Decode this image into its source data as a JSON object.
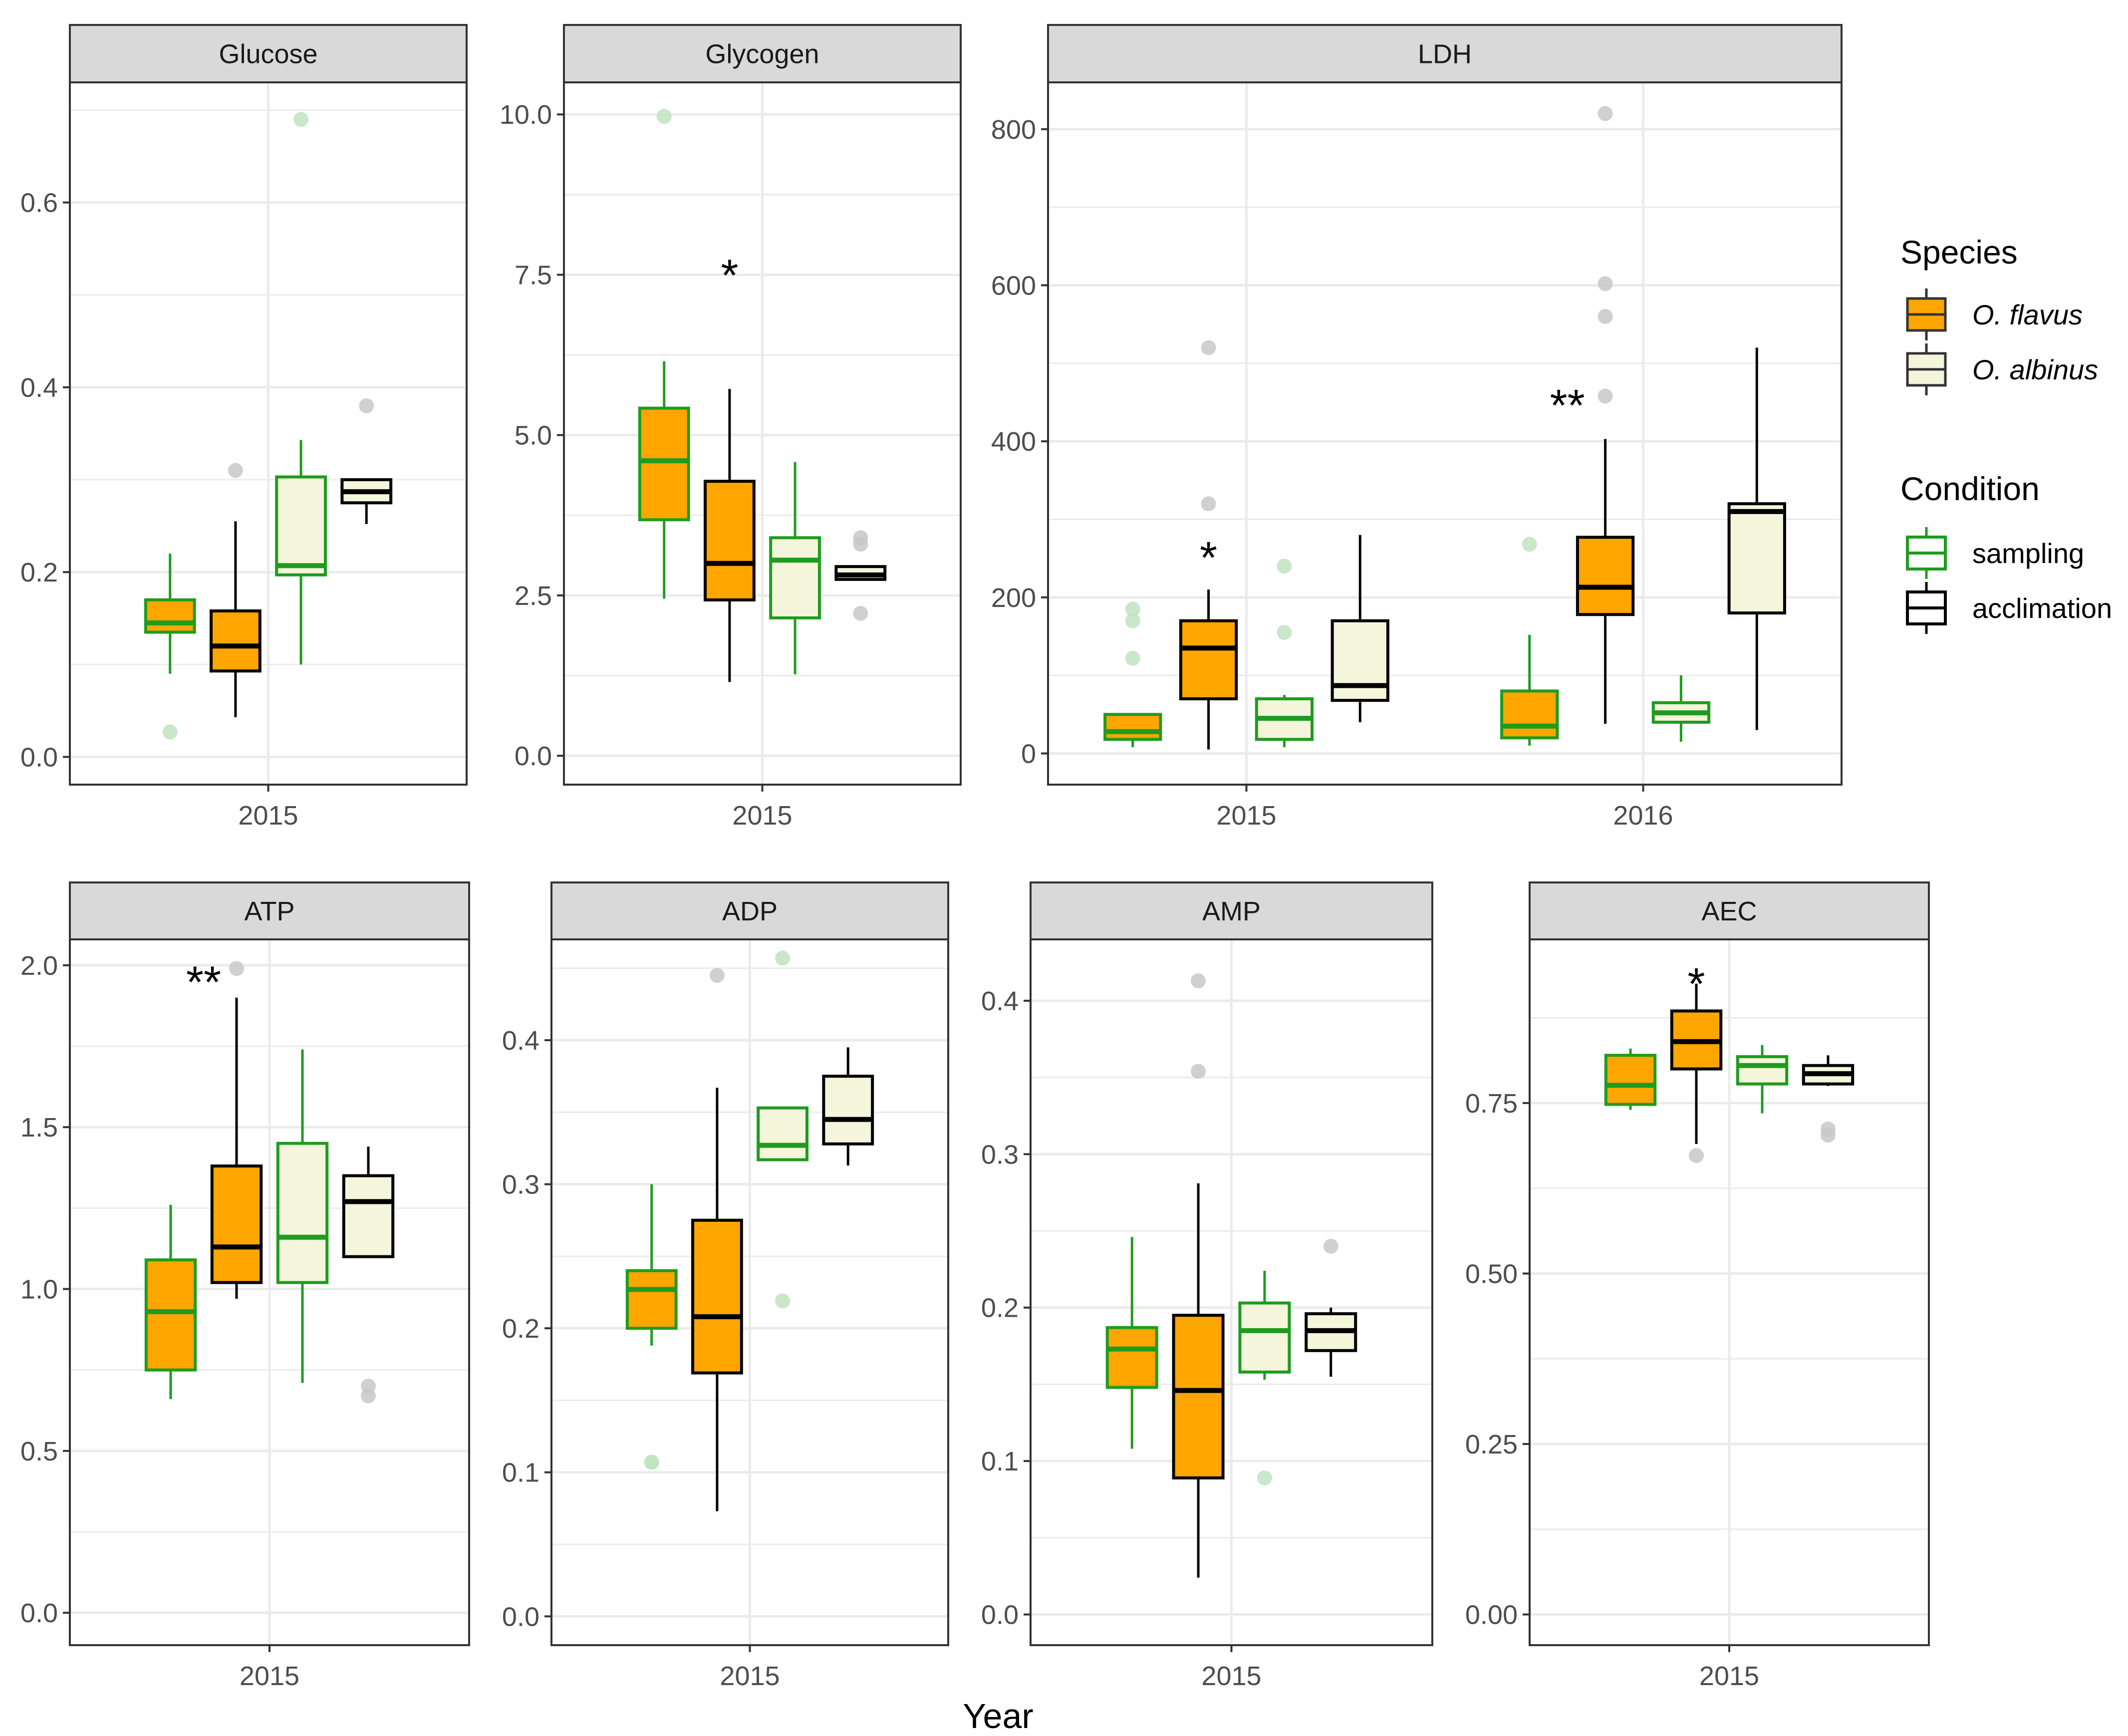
{
  "figure": {
    "xlabel": "Year",
    "legend_species_title": "Species",
    "legend_condition_title": "Condition",
    "legend_position": "right",
    "grid": true
  },
  "legend": {
    "species": [
      {
        "label": "O. flavus",
        "fill": "#FFA500",
        "italic": true
      },
      {
        "label": "O. albinus",
        "fill": "#F5F5DC",
        "italic": true
      }
    ],
    "condition": [
      {
        "label": "sampling",
        "stroke": "#1E9C1E"
      },
      {
        "label": "acclimation",
        "stroke": "#000000"
      }
    ]
  },
  "colors": {
    "o_flavus": "#FFA500",
    "o_albinus": "#F5F5DC",
    "sampling": "#1E9C1E",
    "acclimation": "#000000",
    "strip": "#D9D9D9",
    "grid": "#EBEBEB",
    "outlier_sampling": "#BFE3BF",
    "outlier_acclimation": "#C8C8C8"
  },
  "chart_data": [
    {
      "type": "box",
      "title": "Glucose",
      "ylim": [
        -0.03,
        0.73
      ],
      "yticks": [
        0.0,
        0.2,
        0.4,
        0.6
      ],
      "ytick_labels": [
        "0.0",
        "0.2",
        "0.4",
        "0.6"
      ],
      "minor_grid": [
        0.1,
        0.3,
        0.5,
        0.7
      ],
      "years": [
        "2015"
      ],
      "groups": [
        {
          "year": "2015",
          "species": "O. flavus",
          "condition": "sampling",
          "min": 0.09,
          "q1": 0.135,
          "median": 0.145,
          "q3": 0.17,
          "max": 0.22,
          "outliers": [
            0.027
          ]
        },
        {
          "year": "2015",
          "species": "O. flavus",
          "condition": "acclimation",
          "min": 0.043,
          "q1": 0.093,
          "median": 0.12,
          "q3": 0.158,
          "max": 0.255,
          "outliers": [
            0.31
          ]
        },
        {
          "year": "2015",
          "species": "O. albinus",
          "condition": "sampling",
          "min": 0.1,
          "q1": 0.197,
          "median": 0.207,
          "q3": 0.303,
          "max": 0.343,
          "outliers": [
            0.69
          ]
        },
        {
          "year": "2015",
          "species": "O. albinus",
          "condition": "acclimation",
          "min": 0.252,
          "q1": 0.275,
          "median": 0.287,
          "q3": 0.3,
          "max": 0.3,
          "outliers": [
            0.38
          ]
        }
      ],
      "annotations": []
    },
    {
      "type": "box",
      "title": "Glycogen",
      "ylim": [
        -0.45,
        10.5
      ],
      "yticks": [
        0.0,
        2.5,
        5.0,
        7.5,
        10.0
      ],
      "ytick_labels": [
        "0.0",
        "2.5",
        "5.0",
        "7.5",
        "10.0"
      ],
      "minor_grid": [
        1.25,
        3.75,
        6.25,
        8.75
      ],
      "years": [
        "2015"
      ],
      "groups": [
        {
          "year": "2015",
          "species": "O. flavus",
          "condition": "sampling",
          "min": 2.45,
          "q1": 3.68,
          "median": 4.6,
          "q3": 5.42,
          "max": 6.15,
          "outliers": [
            9.97
          ]
        },
        {
          "year": "2015",
          "species": "O. flavus",
          "condition": "acclimation",
          "min": 1.15,
          "q1": 2.43,
          "median": 3.0,
          "q3": 4.28,
          "max": 5.72,
          "outliers": []
        },
        {
          "year": "2015",
          "species": "O. albinus",
          "condition": "sampling",
          "min": 1.27,
          "q1": 2.15,
          "median": 3.05,
          "q3": 3.4,
          "max": 4.58,
          "outliers": []
        },
        {
          "year": "2015",
          "species": "O. albinus",
          "condition": "acclimation",
          "min": 2.75,
          "q1": 2.75,
          "median": 2.82,
          "q3": 2.95,
          "max": 2.95,
          "outliers": [
            3.4,
            3.3,
            2.22
          ]
        }
      ],
      "annotations": [
        {
          "text": "*",
          "year": "2015",
          "group": 1,
          "y": 7.6
        }
      ]
    },
    {
      "type": "box",
      "title": "LDH",
      "ylim": [
        -40,
        860
      ],
      "yticks": [
        0,
        200,
        400,
        600,
        800
      ],
      "ytick_labels": [
        "0",
        "200",
        "400",
        "600",
        "800"
      ],
      "minor_grid": [
        100,
        300,
        500,
        700
      ],
      "years": [
        "2015",
        "2016"
      ],
      "groups": [
        {
          "year": "2015",
          "species": "O. flavus",
          "condition": "sampling",
          "min": 8,
          "q1": 18,
          "median": 28,
          "q3": 50,
          "max": 50,
          "outliers": [
            185,
            170,
            122
          ]
        },
        {
          "year": "2015",
          "species": "O. flavus",
          "condition": "acclimation",
          "min": 5,
          "q1": 70,
          "median": 135,
          "q3": 170,
          "max": 210,
          "outliers": [
            520,
            320
          ]
        },
        {
          "year": "2015",
          "species": "O. albinus",
          "condition": "sampling",
          "min": 8,
          "q1": 18,
          "median": 45,
          "q3": 70,
          "max": 75,
          "outliers": [
            240,
            155
          ]
        },
        {
          "year": "2015",
          "species": "O. albinus",
          "condition": "acclimation",
          "min": 40,
          "q1": 68,
          "median": 87,
          "q3": 170,
          "max": 280,
          "outliers": []
        },
        {
          "year": "2016",
          "species": "O. flavus",
          "condition": "sampling",
          "min": 10,
          "q1": 20,
          "median": 35,
          "q3": 80,
          "max": 152,
          "outliers": [
            268
          ]
        },
        {
          "year": "2016",
          "species": "O. flavus",
          "condition": "acclimation",
          "min": 38,
          "q1": 178,
          "median": 213,
          "q3": 277,
          "max": 403,
          "outliers": [
            820,
            602,
            560,
            458
          ]
        },
        {
          "year": "2016",
          "species": "O. albinus",
          "condition": "sampling",
          "min": 15,
          "q1": 40,
          "median": 52,
          "q3": 65,
          "max": 100,
          "outliers": []
        },
        {
          "year": "2016",
          "species": "O. albinus",
          "condition": "acclimation",
          "min": 30,
          "q1": 180,
          "median": 310,
          "q3": 320,
          "max": 520,
          "outliers": []
        }
      ],
      "annotations": [
        {
          "text": "*",
          "year": "2015",
          "group": 1,
          "y": 260
        },
        {
          "text": "**",
          "year": "2016",
          "group": 0.5,
          "y": 455
        }
      ]
    },
    {
      "type": "box",
      "title": "ATP",
      "ylim": [
        -0.1,
        2.08
      ],
      "yticks": [
        0.0,
        0.5,
        1.0,
        1.5,
        2.0
      ],
      "ytick_labels": [
        "0.0",
        "0.5",
        "1.0",
        "1.5",
        "2.0"
      ],
      "minor_grid": [
        0.25,
        0.75,
        1.25,
        1.75
      ],
      "years": [
        "2015"
      ],
      "groups": [
        {
          "year": "2015",
          "species": "O. flavus",
          "condition": "sampling",
          "min": 0.66,
          "q1": 0.75,
          "median": 0.93,
          "q3": 1.09,
          "max": 1.26,
          "outliers": []
        },
        {
          "year": "2015",
          "species": "O. flavus",
          "condition": "acclimation",
          "min": 0.97,
          "q1": 1.02,
          "median": 1.13,
          "q3": 1.38,
          "max": 1.9,
          "outliers": [
            1.99
          ]
        },
        {
          "year": "2015",
          "species": "O. albinus",
          "condition": "sampling",
          "min": 0.71,
          "q1": 1.02,
          "median": 1.16,
          "q3": 1.45,
          "max": 1.74,
          "outliers": []
        },
        {
          "year": "2015",
          "species": "O. albinus",
          "condition": "acclimation",
          "min": 1.1,
          "q1": 1.1,
          "median": 1.27,
          "q3": 1.35,
          "max": 1.44,
          "outliers": [
            0.7,
            0.67
          ]
        }
      ],
      "annotations": [
        {
          "text": "**",
          "year": "2015",
          "group": 0.5,
          "y": 1.97
        }
      ]
    },
    {
      "type": "box",
      "title": "ADP",
      "ylim": [
        -0.02,
        0.47
      ],
      "yticks": [
        0.0,
        0.1,
        0.2,
        0.3,
        0.4
      ],
      "ytick_labels": [
        "0.0",
        "0.1",
        "0.2",
        "0.3",
        "0.4"
      ],
      "minor_grid": [
        0.05,
        0.15,
        0.25,
        0.35,
        0.45
      ],
      "years": [
        "2015"
      ],
      "groups": [
        {
          "year": "2015",
          "species": "O. flavus",
          "condition": "sampling",
          "min": 0.188,
          "q1": 0.2,
          "median": 0.227,
          "q3": 0.24,
          "max": 0.3,
          "outliers": [
            0.107,
            0.107
          ]
        },
        {
          "year": "2015",
          "species": "O. flavus",
          "condition": "acclimation",
          "min": 0.073,
          "q1": 0.169,
          "median": 0.208,
          "q3": 0.275,
          "max": 0.367,
          "outliers": [
            0.445
          ]
        },
        {
          "year": "2015",
          "species": "O. albinus",
          "condition": "sampling",
          "min": 0.317,
          "q1": 0.317,
          "median": 0.327,
          "q3": 0.353,
          "max": 0.353,
          "outliers": [
            0.457,
            0.219
          ]
        },
        {
          "year": "2015",
          "species": "O. albinus",
          "condition": "acclimation",
          "min": 0.313,
          "q1": 0.328,
          "median": 0.345,
          "q3": 0.375,
          "max": 0.395,
          "outliers": []
        }
      ],
      "annotations": []
    },
    {
      "type": "box",
      "title": "AMP",
      "ylim": [
        -0.02,
        0.44
      ],
      "yticks": [
        0.0,
        0.1,
        0.2,
        0.3,
        0.4
      ],
      "ytick_labels": [
        "0.0",
        "0.1",
        "0.2",
        "0.3",
        "0.4"
      ],
      "minor_grid": [
        0.05,
        0.15,
        0.25,
        0.35
      ],
      "years": [
        "2015"
      ],
      "groups": [
        {
          "year": "2015",
          "species": "O. flavus",
          "condition": "sampling",
          "min": 0.108,
          "q1": 0.148,
          "median": 0.173,
          "q3": 0.187,
          "max": 0.246,
          "outliers": []
        },
        {
          "year": "2015",
          "species": "O. flavus",
          "condition": "acclimation",
          "min": 0.024,
          "q1": 0.089,
          "median": 0.146,
          "q3": 0.195,
          "max": 0.281,
          "outliers": [
            0.413,
            0.354
          ]
        },
        {
          "year": "2015",
          "species": "O. albinus",
          "condition": "sampling",
          "min": 0.153,
          "q1": 0.158,
          "median": 0.185,
          "q3": 0.203,
          "max": 0.224,
          "outliers": [
            0.089
          ]
        },
        {
          "year": "2015",
          "species": "O. albinus",
          "condition": "acclimation",
          "min": 0.155,
          "q1": 0.172,
          "median": 0.185,
          "q3": 0.196,
          "max": 0.2,
          "outliers": [
            0.24
          ]
        }
      ],
      "annotations": []
    },
    {
      "type": "box",
      "title": "AEC",
      "ylim": [
        -0.045,
        0.99
      ],
      "yticks": [
        0.0,
        0.25,
        0.5,
        0.75
      ],
      "ytick_labels": [
        "0.00",
        "0.25",
        "0.50",
        "0.75"
      ],
      "minor_grid": [
        0.125,
        0.375,
        0.625,
        0.875
      ],
      "years": [
        "2015"
      ],
      "groups": [
        {
          "year": "2015",
          "species": "O. flavus",
          "condition": "sampling",
          "min": 0.74,
          "q1": 0.748,
          "median": 0.776,
          "q3": 0.82,
          "max": 0.83,
          "outliers": []
        },
        {
          "year": "2015",
          "species": "O. flavus",
          "condition": "acclimation",
          "min": 0.69,
          "q1": 0.8,
          "median": 0.84,
          "q3": 0.885,
          "max": 0.925,
          "outliers": [
            0.673
          ]
        },
        {
          "year": "2015",
          "species": "O. albinus",
          "condition": "sampling",
          "min": 0.735,
          "q1": 0.778,
          "median": 0.805,
          "q3": 0.818,
          "max": 0.835,
          "outliers": []
        },
        {
          "year": "2015",
          "species": "O. albinus",
          "condition": "acclimation",
          "min": 0.775,
          "q1": 0.778,
          "median": 0.793,
          "q3": 0.805,
          "max": 0.82,
          "outliers": [
            0.712,
            0.703
          ]
        }
      ],
      "annotations": [
        {
          "text": "*",
          "year": "2015",
          "group": 1,
          "y": 0.935
        }
      ]
    }
  ]
}
